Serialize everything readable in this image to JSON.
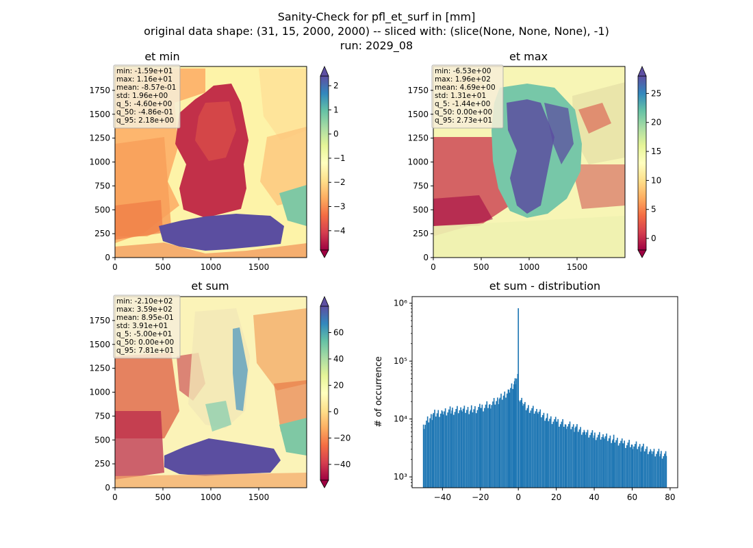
{
  "figure": {
    "title_lines": [
      "Sanity-Check for pfl_et_surf in [mm]",
      "original data shape: (31, 15, 2000, 2000) -- sliced with: (slice(None, None, None), -1)",
      "run: 2029_08"
    ]
  },
  "colors": {
    "hist_bar": "#1f77b4",
    "colormap": "Spectral",
    "colormap_stops": [
      "#9e0142",
      "#d53e4f",
      "#f46d43",
      "#fdae61",
      "#fee08b",
      "#ffffbf",
      "#e6f598",
      "#abdda4",
      "#66c2a5",
      "#3288bd",
      "#5e4fa2"
    ]
  },
  "chart_data": [
    {
      "type": "heatmap",
      "title": "et min",
      "x_ticks": [
        0,
        500,
        1000,
        1500
      ],
      "y_ticks": [
        0,
        250,
        500,
        750,
        1000,
        1250,
        1500,
        1750
      ],
      "xlim": [
        0,
        2000
      ],
      "ylim": [
        0,
        2000
      ],
      "colorbar": {
        "range": [
          -4.8,
          2.4
        ],
        "ticks": [
          2,
          1,
          0,
          -1,
          -2,
          -3,
          -4
        ],
        "tick_labels": [
          "2",
          "1",
          "0",
          "−1",
          "−2",
          "−3",
          "−4"
        ],
        "extend": "both"
      },
      "stats": [
        "min: -1.59e+01",
        "max: 1.16e+01",
        "mean: -8.57e-01",
        "std: 1.96e+00",
        "q_5: -4.60e+00",
        "q_50: -4.86e-01",
        "q_95: 2.18e+00"
      ]
    },
    {
      "type": "heatmap",
      "title": "et max",
      "x_ticks": [
        0,
        500,
        1000,
        1500
      ],
      "y_ticks": [
        0,
        250,
        500,
        750,
        1000,
        1250,
        1500,
        1750
      ],
      "xlim": [
        0,
        2000
      ],
      "ylim": [
        0,
        2000
      ],
      "colorbar": {
        "range": [
          -2,
          28
        ],
        "ticks": [
          25,
          20,
          15,
          10,
          5,
          0
        ],
        "tick_labels": [
          "25",
          "20",
          "15",
          "10",
          "5",
          "0"
        ],
        "extend": "both"
      },
      "stats": [
        "min: -6.53e+00",
        "max: 1.96e+02",
        "mean: 4.69e+00",
        "std: 1.31e+01",
        "q_5: -1.44e+00",
        "q_50: 0.00e+00",
        "q_95: 2.73e+01"
      ]
    },
    {
      "type": "heatmap",
      "title": "et sum",
      "x_ticks": [
        0,
        500,
        1000,
        1500
      ],
      "y_ticks": [
        0,
        250,
        500,
        750,
        1000,
        1250,
        1500,
        1750
      ],
      "xlim": [
        0,
        2000
      ],
      "ylim": [
        0,
        2000
      ],
      "colorbar": {
        "range": [
          -52,
          80
        ],
        "ticks": [
          60,
          40,
          20,
          0,
          -20,
          -40
        ],
        "tick_labels": [
          "60",
          "40",
          "20",
          "0",
          "−20",
          "−40"
        ],
        "extend": "both"
      },
      "stats": [
        "min: -2.10e+02",
        "max: 3.59e+02",
        "mean: 8.95e-01",
        "std: 3.91e+01",
        "q_5: -5.00e+01",
        "q_50: 0.00e+00",
        "q_95: 7.81e+01"
      ]
    },
    {
      "type": "bar",
      "title": "et sum - distribution",
      "ylabel": "# of occurrence",
      "xlabel": "",
      "y_scale": "log",
      "xlim": [
        -56,
        84
      ],
      "ylim": [
        650,
        1300000
      ],
      "x_ticks": [
        -40,
        -20,
        0,
        20,
        40,
        60,
        80
      ],
      "x_tick_labels": [
        "−40",
        "−20",
        "0",
        "20",
        "40",
        "60",
        "80"
      ],
      "y_ticks": [
        1000,
        10000,
        100000,
        1000000
      ],
      "y_tick_labels": [
        "10³",
        "10⁴",
        "10⁵",
        "10⁶"
      ],
      "bin_width": 0.6,
      "x": [
        -50,
        -45,
        -40,
        -35,
        -30,
        -25,
        -20,
        -15,
        -10,
        -5,
        -2,
        -1,
        -0.3,
        0,
        0.3,
        1,
        2,
        5,
        10,
        15,
        20,
        25,
        30,
        35,
        40,
        45,
        50,
        55,
        60,
        65,
        70,
        75,
        78
      ],
      "values": [
        8000,
        12000,
        13500,
        14000,
        14200,
        14500,
        15500,
        18000,
        22000,
        32000,
        45000,
        50000,
        60000,
        820000,
        21000,
        20000,
        19000,
        15500,
        13000,
        10500,
        9000,
        8000,
        7000,
        6000,
        5200,
        4800,
        4500,
        3800,
        3600,
        3200,
        2800,
        2500,
        2300
      ]
    }
  ]
}
